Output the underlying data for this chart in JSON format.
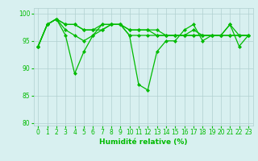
{
  "title": "",
  "xlabel": "Humidité relative (%)",
  "ylabel": "",
  "bg_color": "#d8f0f0",
  "grid_color": "#b0d0d0",
  "line_color": "#00bb00",
  "marker": "D",
  "marker_size": 2.0,
  "linewidth": 0.9,
  "ylim": [
    79.5,
    101
  ],
  "xlim": [
    -0.5,
    23.5
  ],
  "yticks": [
    80,
    85,
    90,
    95,
    100
  ],
  "xticks": [
    0,
    1,
    2,
    3,
    4,
    5,
    6,
    7,
    8,
    9,
    10,
    11,
    12,
    13,
    14,
    15,
    16,
    17,
    18,
    19,
    20,
    21,
    22,
    23
  ],
  "tick_labelsize": 5.5,
  "xlabel_fontsize": 6.5,
  "series": [
    [
      94,
      98,
      99,
      96,
      89,
      93,
      96,
      98,
      98,
      98,
      96,
      87,
      86,
      93,
      95,
      95,
      97,
      98,
      95,
      96,
      96,
      98,
      94,
      96
    ],
    [
      94,
      98,
      99,
      97,
      96,
      95,
      96,
      97,
      98,
      98,
      96,
      96,
      96,
      96,
      96,
      96,
      96,
      96,
      96,
      96,
      96,
      96,
      96,
      96
    ],
    [
      94,
      98,
      99,
      98,
      98,
      97,
      97,
      97,
      98,
      98,
      97,
      97,
      97,
      96,
      96,
      96,
      96,
      96,
      96,
      96,
      96,
      96,
      96,
      96
    ],
    [
      94,
      98,
      99,
      98,
      98,
      97,
      97,
      98,
      98,
      98,
      97,
      97,
      97,
      97,
      96,
      96,
      96,
      97,
      96,
      96,
      96,
      98,
      96,
      96
    ]
  ]
}
